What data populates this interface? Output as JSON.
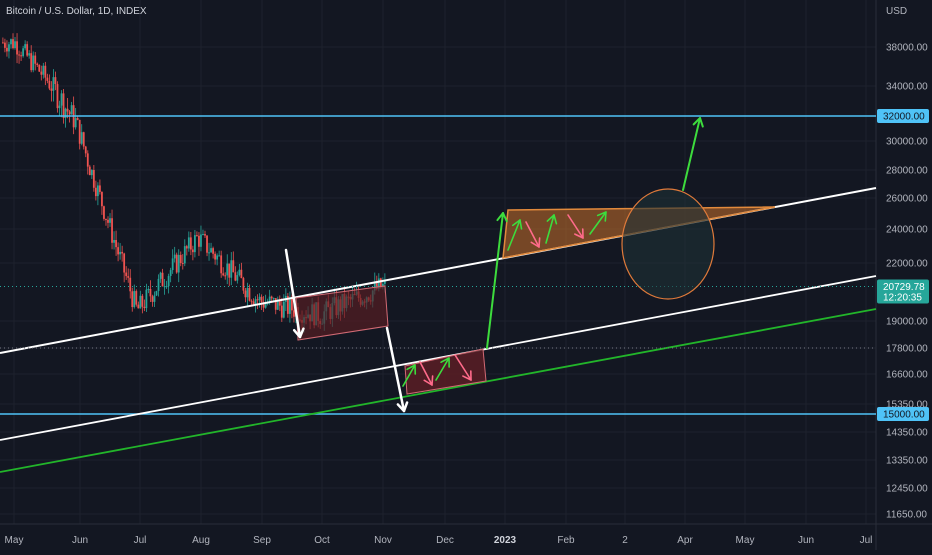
{
  "header": {
    "symbol_title": "Bitcoin / U.S. Dollar, 1D, INDEX",
    "currency": "USD"
  },
  "price_axis": {
    "ticks": [
      "38000.00",
      "34000.00",
      "32000.00",
      "30000.00",
      "28000.00",
      "26000.00",
      "24000.00",
      "22000.00",
      "19000.00",
      "17800.00",
      "16600.00",
      "15350.00",
      "15000.00",
      "14350.00",
      "13350.00",
      "12450.00",
      "11650.00"
    ],
    "labels": [
      {
        "value": "32000.00",
        "color": "#4fc3f7"
      },
      {
        "value": "20729.78",
        "sub": "12:20:35",
        "color": "#26a69a"
      },
      {
        "value": "15000.00",
        "color": "#4fc3f7"
      }
    ]
  },
  "time_axis": {
    "ticks": [
      "May",
      "Jun",
      "Jul",
      "Aug",
      "Sep",
      "Oct",
      "Nov",
      "Dec",
      "2023",
      "Feb",
      "2",
      "Apr",
      "May",
      "Jun",
      "Jul"
    ]
  },
  "colors": {
    "background": "#131722",
    "grid": "#1e222d",
    "up": "#26a69a",
    "down": "#ef5350",
    "horizontal_level": "#4fc3f7",
    "trendline": "#ffffff",
    "support": "#22b52a",
    "arrow_green": "#3ddc3d",
    "arrow_pink": "#ff6b8b",
    "box_red": "#5a1d24",
    "wedge_orange": "#c9702a",
    "circle": "#e07a3a"
  },
  "chart_data": {
    "type": "candlestick",
    "title": "Bitcoin / U.S. Dollar, 1D, INDEX",
    "ylabel": "USD",
    "y_scale": "log",
    "ylim": [
      11000,
      41000
    ],
    "last_price": 20729.78,
    "countdown": "12:20:35",
    "horizontal_levels": [
      32000,
      15000
    ],
    "price_path_by_month": [
      {
        "x": "May",
        "close": 38500
      },
      {
        "x": "Jun",
        "close": 31500
      },
      {
        "x": "Jul",
        "close": 19500
      },
      {
        "x": "Aug",
        "close": 23500
      },
      {
        "x": "Sep",
        "close": 20000
      },
      {
        "x": "Oct",
        "close": 19300
      },
      {
        "x": "Nov",
        "close": 20700
      }
    ],
    "projection_path": [
      {
        "x": "Nov",
        "y": 20700
      },
      {
        "x": "Nov",
        "y": 15400
      },
      {
        "x": "Dec",
        "y": 16900
      },
      {
        "x": "2023",
        "y": 25200
      },
      {
        "x": "Apr",
        "y": 32000
      }
    ]
  }
}
